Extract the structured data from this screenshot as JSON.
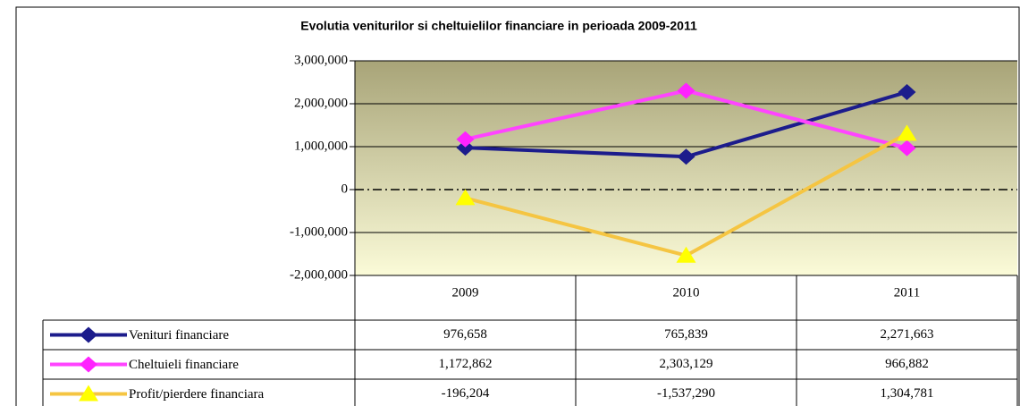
{
  "chart_data": {
    "type": "line",
    "title": "Evolutia veniturilor si cheltuielilor financiare in perioada 2009-2011",
    "categories": [
      "2009",
      "2010",
      "2011"
    ],
    "series": [
      {
        "name": "Venituri financiare",
        "color": "#1c1c8c",
        "marker_color": "#1c1c8c",
        "marker": "diamond",
        "values": [
          976658,
          765839,
          2271663
        ],
        "value_labels": [
          "976,658",
          "765,839",
          "2,271,663"
        ]
      },
      {
        "name": "Cheltuieli financiare",
        "color": "#ff44ff",
        "marker_color": "#ff22ff",
        "marker": "diamond",
        "values": [
          1172862,
          2303129,
          966882
        ],
        "value_labels": [
          "1,172,862",
          "2,303,129",
          "966,882"
        ]
      },
      {
        "name": "Profit/pierdere financiara",
        "color": "#f5c542",
        "marker_color": "#ffff00",
        "marker": "triangle",
        "values": [
          -196204,
          -1537290,
          1304781
        ],
        "value_labels": [
          "-196,204",
          "-1,537,290",
          "1,304,781"
        ]
      }
    ],
    "ylim": [
      -2000000,
      3000000
    ],
    "yticks": [
      {
        "value": -2000000,
        "label": "-2,000,000"
      },
      {
        "value": -1000000,
        "label": "-1,000,000"
      },
      0,
      {
        "value": 1000000,
        "label": "1,000,000"
      },
      {
        "value": 2000000,
        "label": "2,000,000"
      },
      {
        "value": 3000000,
        "label": "3,000,000"
      }
    ],
    "grid": true,
    "data_table": true
  }
}
